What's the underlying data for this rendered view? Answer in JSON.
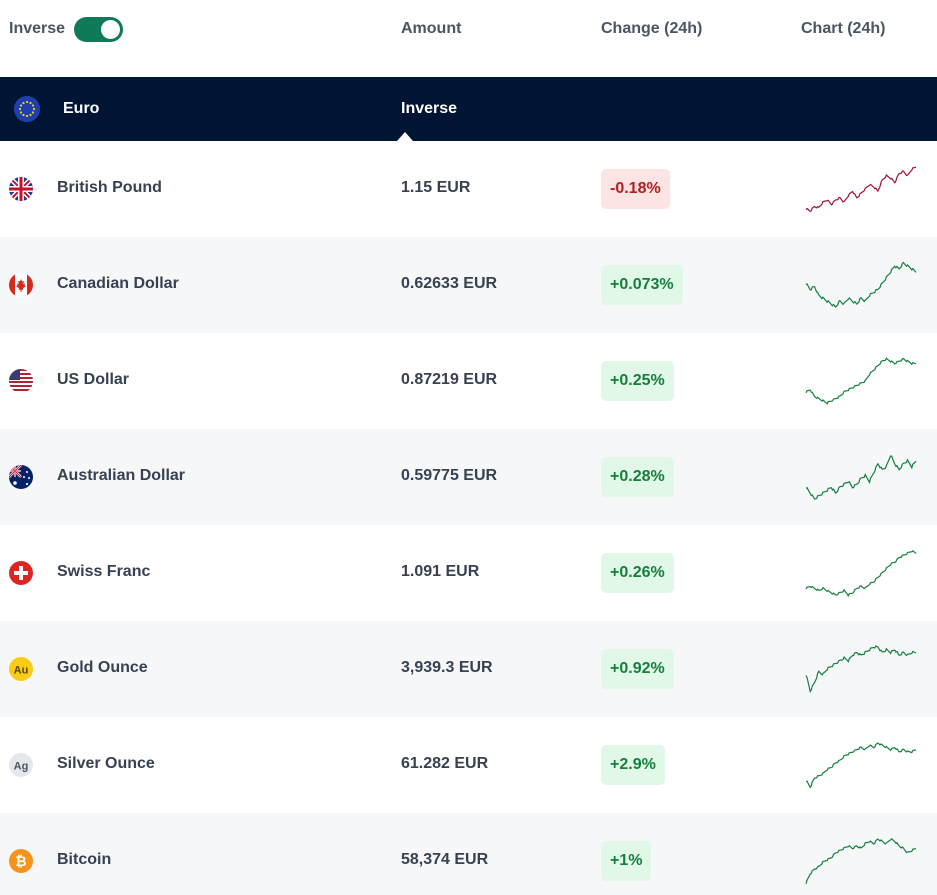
{
  "header": {
    "inverse_label": "Inverse",
    "inverse_on": true,
    "col_amount": "Amount",
    "col_change": "Change (24h)",
    "col_chart": "Chart (24h)"
  },
  "base": {
    "name": "Euro",
    "mode_label": "Inverse",
    "icon": "eu-flag-icon"
  },
  "colors": {
    "up": "#15803d",
    "down": "#b91c1c",
    "toggle": "#0f7a5a",
    "base_row": "#001433"
  },
  "rows": [
    {
      "name": "British Pound",
      "amount": "1.15 EUR",
      "change": "-0.18%",
      "dir": "down",
      "icon": "uk-flag-icon",
      "spark": [
        62,
        60,
        64,
        63,
        68,
        70,
        66,
        70,
        72,
        68,
        74,
        78,
        72,
        76,
        80,
        84,
        82,
        78,
        88,
        92,
        90,
        86,
        94,
        96,
        92,
        98,
        100
      ]
    },
    {
      "name": "Canadian Dollar",
      "amount": "0.62633 EUR",
      "change": "+0.073%",
      "dir": "up",
      "icon": "canada-flag-icon",
      "spark": [
        48,
        44,
        46,
        40,
        38,
        36,
        34,
        32,
        36,
        34,
        38,
        36,
        34,
        38,
        36,
        40,
        42,
        44,
        48,
        52,
        56,
        60,
        58,
        62,
        60,
        58,
        56
      ]
    },
    {
      "name": "US Dollar",
      "amount": "0.87219 EUR",
      "change": "+0.25%",
      "dir": "up",
      "icon": "us-flag-icon",
      "spark": [
        34,
        36,
        30,
        28,
        26,
        24,
        26,
        28,
        30,
        34,
        36,
        38,
        40,
        42,
        44,
        50,
        54,
        58,
        62,
        64,
        62,
        60,
        62,
        64,
        62,
        60,
        60
      ]
    },
    {
      "name": "Australian Dollar",
      "amount": "0.59775 EUR",
      "change": "+0.28%",
      "dir": "up",
      "icon": "australia-flag-icon",
      "spark": [
        40,
        36,
        32,
        34,
        36,
        38,
        40,
        36,
        40,
        42,
        44,
        40,
        42,
        46,
        48,
        44,
        50,
        56,
        52,
        54,
        62,
        56,
        52,
        56,
        58,
        54,
        58
      ]
    },
    {
      "name": "Swiss Franc",
      "amount": "1.091 EUR",
      "change": "+0.26%",
      "dir": "up",
      "icon": "swiss-flag-icon",
      "spark": [
        34,
        36,
        34,
        32,
        34,
        32,
        30,
        28,
        30,
        32,
        28,
        30,
        34,
        36,
        34,
        38,
        40,
        44,
        48,
        52,
        56,
        58,
        62,
        64,
        66,
        68,
        66
      ]
    },
    {
      "name": "Gold Ounce",
      "amount": "3,939.3 EUR",
      "change": "+0.92%",
      "dir": "up",
      "icon": "gold-au-icon",
      "spark": [
        40,
        28,
        34,
        42,
        40,
        44,
        46,
        48,
        50,
        52,
        50,
        54,
        56,
        54,
        56,
        58,
        60,
        60,
        56,
        58,
        56,
        58,
        54,
        56,
        54,
        56,
        56
      ]
    },
    {
      "name": "Silver Ounce",
      "amount": "61.282 EUR",
      "change": "+2.9%",
      "dir": "up",
      "icon": "silver-ag-icon",
      "spark": [
        30,
        24,
        32,
        34,
        36,
        40,
        42,
        46,
        48,
        52,
        54,
        56,
        58,
        60,
        58,
        62,
        60,
        64,
        62,
        60,
        58,
        60,
        56,
        58,
        56,
        56,
        58
      ]
    },
    {
      "name": "Bitcoin",
      "amount": "58,374 EUR",
      "change": "+1%",
      "dir": "up",
      "icon": "bitcoin-icon",
      "spark": [
        26,
        34,
        38,
        40,
        44,
        46,
        48,
        52,
        54,
        56,
        58,
        56,
        58,
        56,
        60,
        62,
        60,
        64,
        62,
        60,
        64,
        62,
        58,
        56,
        52,
        54,
        56
      ]
    }
  ]
}
